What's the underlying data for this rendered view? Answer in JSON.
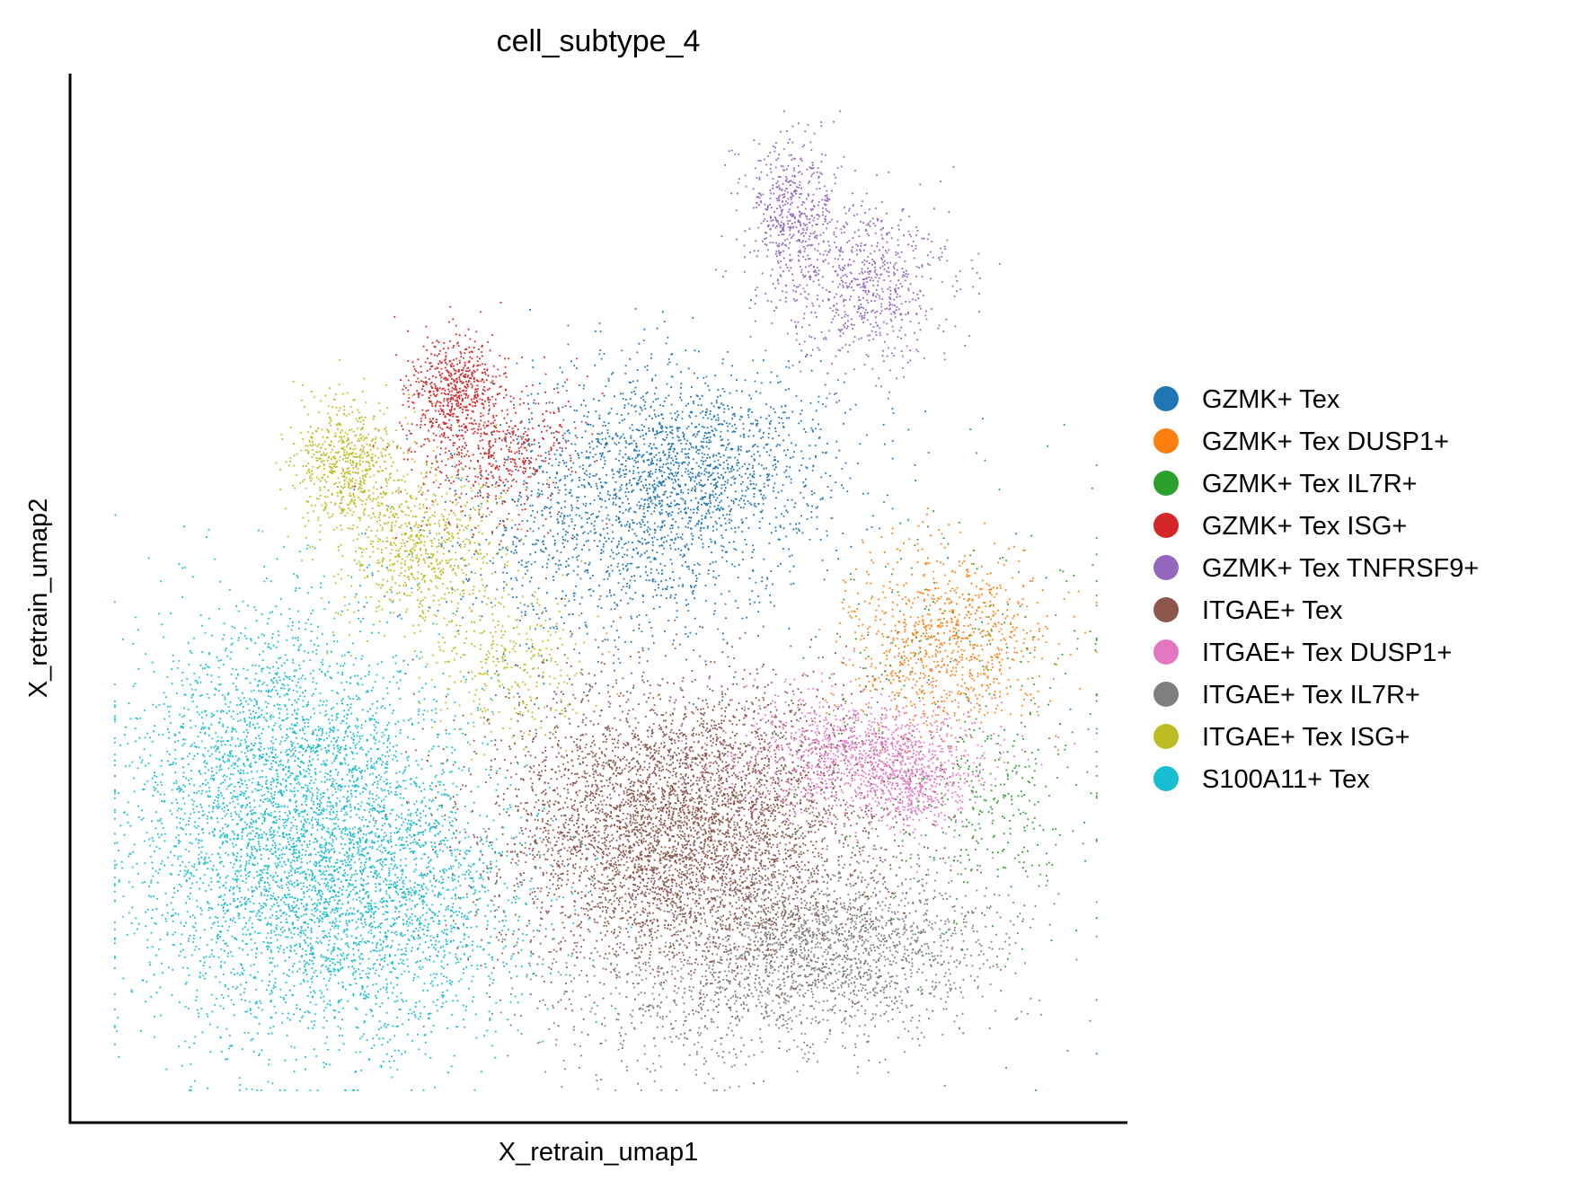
{
  "chart_data": {
    "type": "scatter",
    "title": "cell_subtype_4",
    "xlabel": "X_retrain_umap1",
    "ylabel": "X_retrain_umap2",
    "xlim": [
      0,
      100
    ],
    "ylim": [
      0,
      100
    ],
    "grid": false,
    "ticks": "none",
    "legend_position": "right",
    "point_size": "small",
    "series": [
      {
        "name": "GZMK+ Tex",
        "color": "#1f77b4",
        "count": 2600,
        "clusters": [
          {
            "cx": 59,
            "cy": 63,
            "sx": 7,
            "sy": 5,
            "w": 0.6
          },
          {
            "cx": 51,
            "cy": 56,
            "sx": 8,
            "sy": 6,
            "w": 0.4
          }
        ]
      },
      {
        "name": "GZMK+ Tex DUSP1+",
        "color": "#ff7f0e",
        "count": 900,
        "clusters": [
          {
            "cx": 83,
            "cy": 46,
            "sx": 5,
            "sy": 4.5,
            "w": 1.0
          }
        ]
      },
      {
        "name": "GZMK+ Tex IL7R+",
        "color": "#2ca02c",
        "count": 500,
        "clusters": [
          {
            "cx": 85,
            "cy": 38,
            "sx": 8,
            "sy": 12,
            "w": 0.7
          },
          {
            "cx": 88,
            "cy": 30,
            "sx": 3,
            "sy": 4,
            "w": 0.3
          }
        ]
      },
      {
        "name": "GZMK+ Tex ISG+",
        "color": "#d62728",
        "count": 1100,
        "clusters": [
          {
            "cx": 36,
            "cy": 70,
            "sx": 2.2,
            "sy": 2.5,
            "w": 0.5
          },
          {
            "cx": 40,
            "cy": 64,
            "sx": 4,
            "sy": 3.5,
            "w": 0.5
          }
        ]
      },
      {
        "name": "GZMK+ Tex TNFRSF9+",
        "color": "#9467bd",
        "count": 1200,
        "clusters": [
          {
            "cx": 68,
            "cy": 87,
            "sx": 2.2,
            "sy": 3.5,
            "w": 0.4
          },
          {
            "cx": 75,
            "cy": 80,
            "sx": 4,
            "sy": 4,
            "w": 0.6
          }
        ]
      },
      {
        "name": "ITGAE+ Tex",
        "color": "#8c564b",
        "count": 5200,
        "clusters": [
          {
            "cx": 58,
            "cy": 28,
            "sx": 9,
            "sy": 7,
            "w": 1.0
          }
        ]
      },
      {
        "name": "ITGAE+ Tex DUSP1+",
        "color": "#e377c2",
        "count": 1500,
        "clusters": [
          {
            "cx": 75,
            "cy": 35,
            "sx": 6,
            "sy": 3,
            "w": 0.75
          },
          {
            "cx": 80,
            "cy": 32,
            "sx": 2.5,
            "sy": 2.5,
            "w": 0.25
          }
        ]
      },
      {
        "name": "ITGAE+ Tex IL7R+",
        "color": "#7f7f7f",
        "count": 2300,
        "clusters": [
          {
            "cx": 72,
            "cy": 17,
            "sx": 8,
            "sy": 4,
            "w": 0.75
          },
          {
            "cx": 60,
            "cy": 12,
            "sx": 9,
            "sy": 4,
            "w": 0.25
          }
        ]
      },
      {
        "name": "ITGAE+ Tex ISG+",
        "color": "#bcbd22",
        "count": 1700,
        "clusters": [
          {
            "cx": 26,
            "cy": 63,
            "sx": 2.5,
            "sy": 3,
            "w": 0.35
          },
          {
            "cx": 33,
            "cy": 55,
            "sx": 4,
            "sy": 4,
            "w": 0.45
          },
          {
            "cx": 41,
            "cy": 44,
            "sx": 4,
            "sy": 4,
            "w": 0.2
          }
        ]
      },
      {
        "name": "S100A11+ Tex",
        "color": "#17becf",
        "count": 5600,
        "clusters": [
          {
            "cx": 22,
            "cy": 23,
            "sx": 8,
            "sy": 8,
            "w": 0.55
          },
          {
            "cx": 20,
            "cy": 36,
            "sx": 7,
            "sy": 7,
            "w": 0.3
          },
          {
            "cx": 33,
            "cy": 20,
            "sx": 6,
            "sy": 6,
            "w": 0.15
          }
        ]
      }
    ]
  }
}
